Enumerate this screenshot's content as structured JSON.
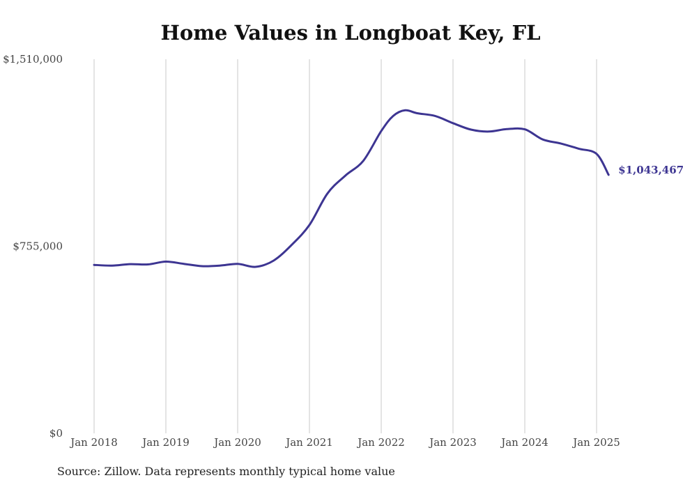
{
  "chart_data": {
    "type": "line",
    "title": "Home Values in Longboat Key, FL",
    "source": "Source: Zillow. Data represents monthly typical home value",
    "y_ticks": [
      "$0",
      "$755,000",
      "$1,510,000"
    ],
    "ylim": [
      0,
      1510000
    ],
    "x_ticks": [
      "Jan 2018",
      "Jan 2019",
      "Jan 2020",
      "Jan 2021",
      "Jan 2022",
      "Jan 2023",
      "Jan 2024",
      "Jan 2025"
    ],
    "x_tick_values": [
      "2018-01",
      "2019-01",
      "2020-01",
      "2021-01",
      "2022-01",
      "2023-01",
      "2024-01",
      "2025-01"
    ],
    "grid": "vertical",
    "line_color": "#3d3592",
    "end_label": "$1,043,467",
    "series": [
      {
        "x": [
          "2018-01",
          "2018-04",
          "2018-07",
          "2018-10",
          "2019-01",
          "2019-04",
          "2019-07",
          "2019-10",
          "2020-01",
          "2020-04",
          "2020-07",
          "2020-10",
          "2021-01",
          "2021-04",
          "2021-07",
          "2021-10",
          "2022-01",
          "2022-03",
          "2022-05",
          "2022-07",
          "2022-10",
          "2023-01",
          "2023-04",
          "2023-07",
          "2023-10",
          "2024-01",
          "2024-04",
          "2024-07",
          "2024-10",
          "2025-01",
          "2025-03"
        ],
        "values": [
          680000,
          677000,
          683000,
          682000,
          693000,
          684000,
          675000,
          677000,
          684000,
          672000,
          697000,
          760000,
          841000,
          968000,
          1040000,
          1100000,
          1220000,
          1281000,
          1304000,
          1292000,
          1281000,
          1252000,
          1226000,
          1218000,
          1228000,
          1227000,
          1186000,
          1170000,
          1149000,
          1128000,
          1043467
        ]
      }
    ]
  }
}
